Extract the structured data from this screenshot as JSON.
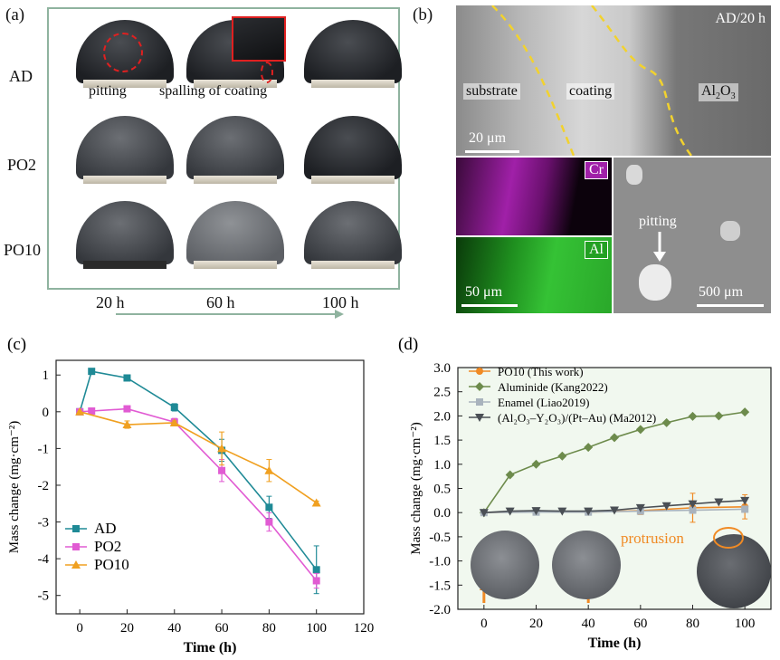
{
  "panel_a": {
    "label": "(a)",
    "rows": [
      "AD",
      "PO2",
      "PO10"
    ],
    "annotations": {
      "pitting": "pitting",
      "spalling": "spalling of coating"
    },
    "times": [
      "20 h",
      "60 h",
      "100 h"
    ]
  },
  "panel_b": {
    "label": "(b)",
    "condition": "AD/20 h",
    "regions": {
      "substrate": "substrate",
      "coating": "coating",
      "oxide": "Al",
      "oxide_sub2": "2",
      "oxide_o": "O",
      "oxide_sub3": "3"
    },
    "scale_top": "20 μm",
    "eds_cr": "Cr",
    "eds_al": "Al",
    "scale_eds": "50 μm",
    "pitting": "pitting",
    "scale_pit": "500 μm"
  },
  "chart_data": [
    {
      "type": "line",
      "panel": "(c)",
      "xlabel": "Time (h)",
      "ylabel": "Mass change (mg·cm⁻²)",
      "xlim": [
        -10,
        120
      ],
      "ylim": [
        -5.5,
        1.4
      ],
      "xticks": [
        0,
        20,
        40,
        60,
        80,
        100,
        120
      ],
      "yticks": [
        1,
        0,
        -1,
        -2,
        -3,
        -4,
        -5
      ],
      "series": [
        {
          "name": "AD",
          "color": "#1f8a96",
          "marker": "square",
          "x": [
            0,
            5,
            20,
            40,
            60,
            80,
            100
          ],
          "y": [
            0,
            1.1,
            0.92,
            0.12,
            -1.05,
            -2.6,
            -4.3
          ],
          "err": [
            0,
            0,
            0,
            0.1,
            0.3,
            0.3,
            0.65
          ]
        },
        {
          "name": "PO2",
          "color": "#e15bd3",
          "marker": "square",
          "x": [
            0,
            5,
            20,
            40,
            60,
            80,
            100
          ],
          "y": [
            0,
            0.02,
            0.08,
            -0.28,
            -1.6,
            -3.0,
            -4.6
          ],
          "err": [
            0,
            0,
            0,
            0.1,
            0.3,
            0.25,
            0.2
          ]
        },
        {
          "name": "PO10",
          "color": "#f0a020",
          "marker": "triangle",
          "x": [
            0,
            20,
            40,
            60,
            80,
            100
          ],
          "y": [
            0,
            -0.35,
            -0.3,
            -1.0,
            -1.6,
            -2.48
          ],
          "err": [
            0,
            0.1,
            0.05,
            0.45,
            0.3,
            0.05
          ]
        }
      ]
    },
    {
      "type": "line",
      "panel": "(d)",
      "xlabel": "Time (h)",
      "ylabel": "Mass change (mg·cm⁻²)",
      "xlim": [
        -10,
        110
      ],
      "ylim": [
        -2.0,
        3.0
      ],
      "xticks": [
        0,
        20,
        40,
        60,
        80,
        100
      ],
      "yticks": [
        3.0,
        2.5,
        2.0,
        1.5,
        1.0,
        0.5,
        0.0,
        -0.5,
        -1.0,
        -1.5,
        -2.0
      ],
      "series": [
        {
          "name": "PO10 (This work)",
          "color": "#f08a24",
          "marker": "circle",
          "x": [
            0,
            20,
            40,
            60,
            80,
            100
          ],
          "y": [
            0,
            0.02,
            0.01,
            0.04,
            0.1,
            0.12
          ],
          "err": [
            0,
            0.03,
            0.03,
            0.08,
            0.3,
            0.25
          ]
        },
        {
          "name": "Aluminide (Kang2022)",
          "color": "#6d8b4c",
          "marker": "diamond",
          "x": [
            0,
            10,
            20,
            30,
            40,
            50,
            60,
            70,
            80,
            90,
            100
          ],
          "y": [
            0,
            0.78,
            1.0,
            1.17,
            1.35,
            1.55,
            1.72,
            1.86,
            1.99,
            2.0,
            2.08
          ],
          "err": []
        },
        {
          "name": "Enamel (Liao2019)",
          "color": "#a9b3bd",
          "marker": "square",
          "x": [
            0,
            20,
            40,
            60,
            80,
            100
          ],
          "y": [
            0,
            0.01,
            0.01,
            0.03,
            0.05,
            0.07
          ],
          "err": []
        },
        {
          "name": "(Al₂O₃–Y₂O₃)/(Pt–Au) (Ma2012)",
          "color": "#4a4f55",
          "marker": "triangle-down",
          "x": [
            0,
            10,
            20,
            30,
            40,
            50,
            60,
            70,
            80,
            90,
            100
          ],
          "y": [
            0,
            0.03,
            0.04,
            0.03,
            0.03,
            0.05,
            0.1,
            0.14,
            0.18,
            0.22,
            0.25
          ],
          "err": []
        }
      ],
      "annotation": "protrusion"
    }
  ]
}
